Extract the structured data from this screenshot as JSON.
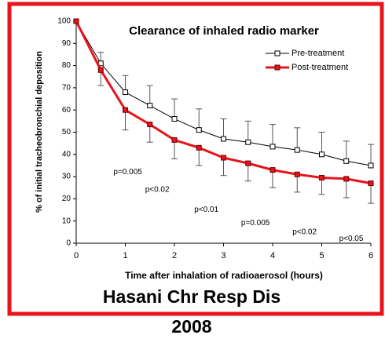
{
  "chart_data": {
    "type": "line",
    "title": "Clearance of inhaled radio marker",
    "xlabel": "Time after inhalation of radioaerosol (hours)",
    "ylabel": "% of initial tracheobronchial deposition",
    "x": [
      0,
      0.5,
      1,
      1.5,
      2,
      2.5,
      3,
      3.5,
      4,
      4.5,
      5,
      5.5,
      6
    ],
    "series": [
      {
        "name": "Pre-treatment",
        "color": "#000000",
        "marker": "open-square",
        "error_side": "up",
        "values": [
          100,
          81,
          68,
          62,
          56,
          51,
          47,
          45.5,
          43.5,
          42,
          40,
          37,
          35
        ],
        "errors": [
          0,
          5,
          7.5,
          9,
          9,
          9.5,
          9,
          9.5,
          10,
          10,
          10,
          9,
          9.5
        ]
      },
      {
        "name": "Post-treatment",
        "color": "#e8141c",
        "marker": "filled-square",
        "error_side": "down",
        "values": [
          100,
          78,
          60,
          53.5,
          46.5,
          43,
          38.5,
          36,
          33,
          31,
          29.5,
          29,
          27
        ],
        "errors": [
          0,
          7,
          9,
          8,
          8.5,
          8,
          8,
          8,
          8,
          8,
          7.5,
          8.5,
          9
        ]
      }
    ],
    "annotations": [
      {
        "text": "p=0.005",
        "x": 1.05,
        "y": 32
      },
      {
        "text": "p<0.02",
        "x": 1.65,
        "y": 24
      },
      {
        "text": "p<0.01",
        "x": 2.65,
        "y": 15
      },
      {
        "text": "p=0.005",
        "x": 3.65,
        "y": 9
      },
      {
        "text": "p<0.02",
        "x": 4.65,
        "y": 5
      },
      {
        "text": "p<0.05",
        "x": 5.6,
        "y": 2
      }
    ],
    "xlim": [
      0,
      6
    ],
    "xticks": [
      0,
      1,
      2,
      3,
      4,
      5,
      6
    ],
    "ylim": [
      0,
      100
    ],
    "yticks": [
      0,
      10,
      20,
      30,
      40,
      50,
      60,
      70,
      80,
      90,
      100
    ],
    "grid": false,
    "legend": "upper right"
  },
  "caption": [
    "Hasani Chr Resp Dis",
    "2008"
  ]
}
